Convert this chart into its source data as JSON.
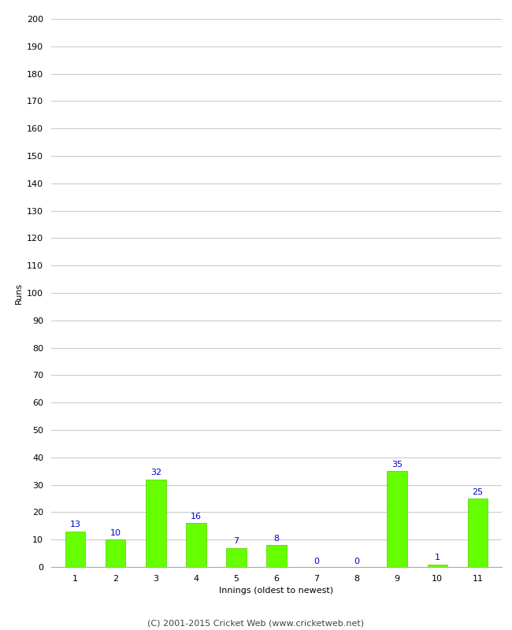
{
  "xlabel": "Innings (oldest to newest)",
  "ylabel": "Runs",
  "categories": [
    "1",
    "2",
    "3",
    "4",
    "5",
    "6",
    "7",
    "8",
    "9",
    "10",
    "11"
  ],
  "values": [
    13,
    10,
    32,
    16,
    7,
    8,
    0,
    0,
    35,
    1,
    25
  ],
  "bar_color": "#66ff00",
  "bar_edge_color": "#55cc00",
  "label_color": "#0000cc",
  "ylim": [
    0,
    200
  ],
  "yticks": [
    0,
    10,
    20,
    30,
    40,
    50,
    60,
    70,
    80,
    90,
    100,
    110,
    120,
    130,
    140,
    150,
    160,
    170,
    180,
    190,
    200
  ],
  "footer": "(C) 2001-2015 Cricket Web (www.cricketweb.net)",
  "background_color": "#ffffff",
  "grid_color": "#cccccc",
  "label_fontsize": 8,
  "axis_fontsize": 8,
  "ylabel_fontsize": 8,
  "footer_fontsize": 8,
  "bar_width": 0.5
}
